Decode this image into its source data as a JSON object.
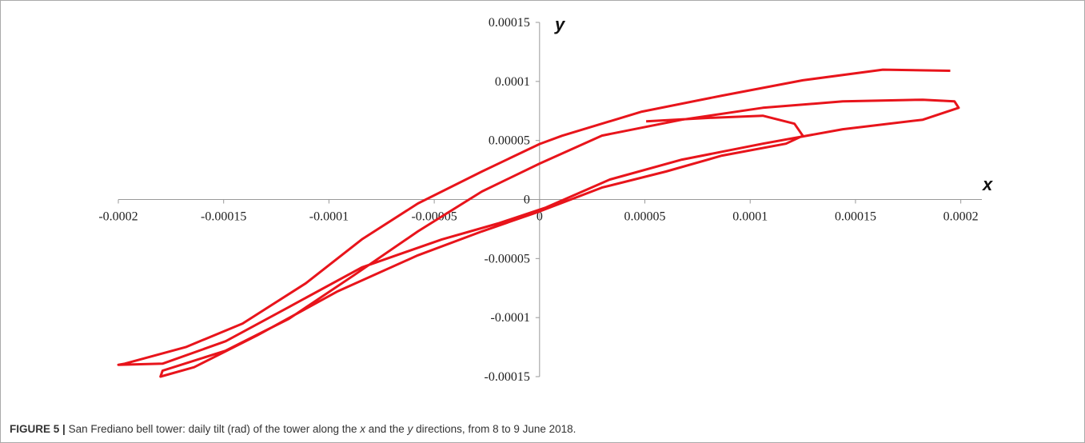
{
  "chart_data": {
    "type": "line",
    "xlabel": "x",
    "ylabel": "y",
    "xlim": [
      -0.0002,
      0.00021
    ],
    "ylim": [
      -0.00015,
      0.00015
    ],
    "xticks": [
      -0.0002,
      -0.00015,
      -0.0001,
      -5e-05,
      0,
      5e-05,
      0.0001,
      0.00015,
      0.0002
    ],
    "yticks": [
      0.00015,
      0.0001,
      5e-05,
      0,
      -5e-05,
      -0.0001,
      -0.00015
    ],
    "series": [
      {
        "color": "#e8141b",
        "x": [
          0.000195,
          0.000163,
          0.000125,
          8.66e-05,
          4.86e-05,
          1.06e-05,
          0,
          -2.74e-05,
          -5.78e-05,
          -8.44e-05,
          -0.000111,
          -0.000141,
          -0.000168,
          -0.000197,
          -0.0002,
          -0.000179,
          -0.000149,
          -0.000119,
          -8.44e-05,
          -4.64e-05,
          -1.98e-05,
          3e-06,
          3.34e-05,
          6.76e-05,
          0.000106,
          0.000144,
          0.000182,
          0.000199,
          0.000197,
          0.000182,
          0.000144,
          0.000106,
          6.76e-05,
          2.96e-05,
          0,
          -2.74e-05,
          -5.78e-05,
          -8.82e-05,
          -0.000119,
          -0.000149,
          -0.000179,
          -0.00018,
          -0.000164,
          -0.000134,
          -9.58e-05,
          -5.78e-05,
          -2.74e-05,
          0,
          2.96e-05,
          6e-05,
          8.66e-05,
          0.000117,
          0.000125,
          0.000121,
          0.000106,
          7.9e-05,
          5.06e-05
        ],
        "y": [
          0.000109,
          0.00011,
          0.000101,
          8.8e-05,
          7.44e-05,
          5.4e-05,
          4.7e-05,
          2.37e-05,
          -3.4e-06,
          -3.38e-05,
          -7.1e-05,
          -0.000105,
          -0.000125,
          -0.000139,
          -0.00014,
          -0.000139,
          -0.00012,
          -9.1e-05,
          -5.75e-05,
          -3.38e-05,
          -2.03e-05,
          -6.8e-06,
          1.69e-05,
          3.38e-05,
          4.73e-05,
          5.95e-05,
          6.76e-05,
          7.77e-05,
          8.31e-05,
          8.45e-05,
          8.31e-05,
          7.77e-05,
          6.76e-05,
          5.41e-05,
          3.04e-05,
          6.8e-06,
          -2.7e-05,
          -6.42e-05,
          -0.000101,
          -0.000128,
          -0.000145,
          -0.00015,
          -0.000142,
          -0.000115,
          -7.77e-05,
          -4.73e-05,
          -2.7e-05,
          -1.01e-05,
          1.01e-05,
          2.37e-05,
          3.72e-05,
          4.73e-05,
          5.4e-05,
          6.42e-05,
          7.1e-05,
          6.9e-05,
          6.62e-05
        ]
      }
    ]
  },
  "caption": {
    "label": "FIGURE 5 |",
    "parts": [
      "San Frediano bell tower: daily tilt (rad) of the tower along the ",
      "x",
      " and the ",
      "y",
      " directions, from 8 to 9 June 2018."
    ]
  }
}
